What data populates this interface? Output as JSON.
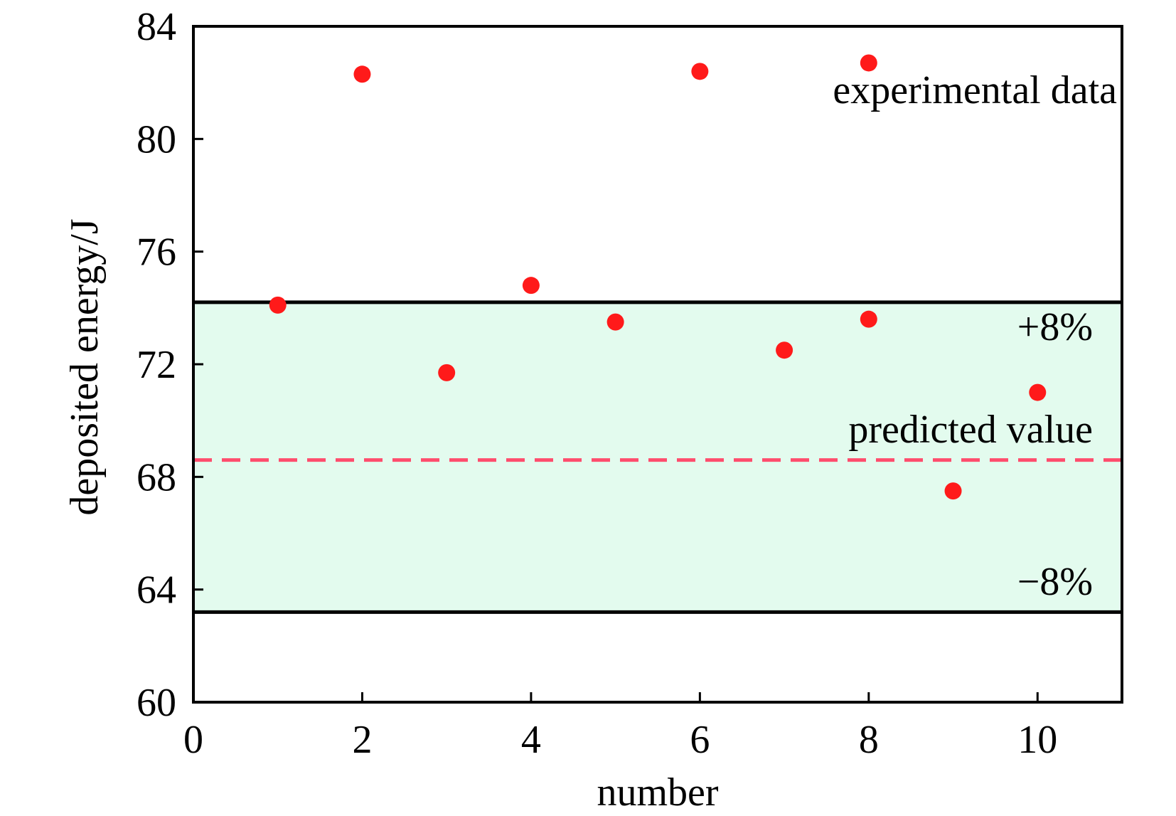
{
  "chart_data": {
    "type": "scatter",
    "title": "",
    "xlabel": "number",
    "ylabel": "deposited energy/J",
    "xlim": [
      0,
      11
    ],
    "ylim": [
      60,
      84
    ],
    "xticks": [
      0,
      2,
      4,
      6,
      8,
      10
    ],
    "yticks": [
      60,
      64,
      68,
      72,
      76,
      80,
      84
    ],
    "grid": false,
    "legend": "none",
    "series": [
      {
        "name": "experimental data",
        "color": "#ff1a1a",
        "points": [
          {
            "x": 1,
            "y": 74.1
          },
          {
            "x": 2,
            "y": 82.3
          },
          {
            "x": 3,
            "y": 71.7
          },
          {
            "x": 4,
            "y": 74.8
          },
          {
            "x": 5,
            "y": 73.5
          },
          {
            "x": 6,
            "y": 82.4
          },
          {
            "x": 7,
            "y": 72.5
          },
          {
            "x": 8,
            "y": 82.7
          },
          {
            "x": 8,
            "y": 73.6
          },
          {
            "x": 9,
            "y": 67.5
          },
          {
            "x": 10,
            "y": 71.0
          }
        ]
      }
    ],
    "reference_lines": {
      "predicted": {
        "label": "predicted value",
        "y": 68.6,
        "color": "#ff4d6d",
        "style": "dashed"
      },
      "upper": {
        "label": "+8%",
        "y": 74.2,
        "color": "#000000"
      },
      "lower": {
        "label": "−8%",
        "y": 63.2,
        "color": "#000000"
      }
    },
    "band_color": "#e3fbee",
    "annotations": [
      "experimental data",
      "+8%",
      "predicted value",
      "−8%"
    ]
  }
}
